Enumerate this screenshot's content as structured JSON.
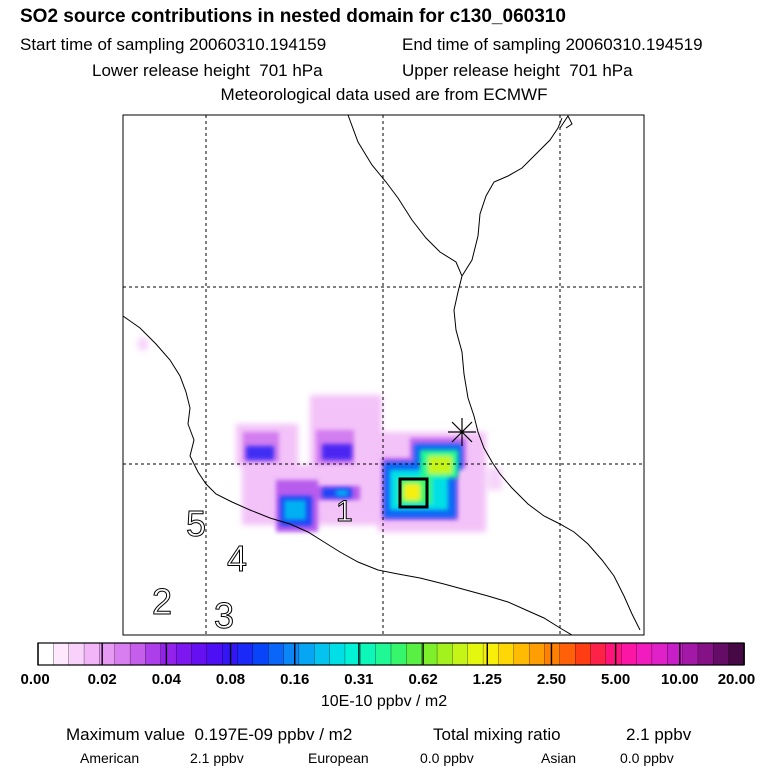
{
  "header": {
    "title": "SO2 source contributions in nested domain for c130_060310",
    "start_time": "Start time of sampling 20060310.194159",
    "end_time": "End time of sampling 20060310.194519",
    "lower_release": "Lower release height  701 hPa",
    "upper_release": "Upper release height  701 hPa",
    "met_data": "Meteorological data used are from ECMWF"
  },
  "chart_data": {
    "type": "heatmap",
    "title": "SO2 source contributions in nested domain for c130_060310",
    "colorbar": {
      "unit_label": "10E-10 ppbv / m2",
      "tick_labels": [
        "0.00",
        "0.02",
        "0.04",
        "0.08",
        "0.16",
        "0.31",
        "0.62",
        "1.25",
        "2.50",
        "5.00",
        "10.00",
        "20.00"
      ],
      "colors": [
        "#ffffff",
        "#fde8fd",
        "#f9d2fb",
        "#f2b6f8",
        "#e79af4",
        "#d97ef0",
        "#c65eec",
        "#ad3feb",
        "#9322ed",
        "#7d17f0",
        "#6610f2",
        "#4d10f4",
        "#3415f6",
        "#1a28f8",
        "#0845f8",
        "#0a66f8",
        "#0b86f7",
        "#07a6f4",
        "#04c4ef",
        "#00dfe6",
        "#02f2d6",
        "#0cf7b8",
        "#1ff894",
        "#36f76b",
        "#58f143",
        "#7ef02b",
        "#a3f21e",
        "#c4f516",
        "#e3f80e",
        "#f8f00a",
        "#ffd705",
        "#ffbb02",
        "#ff9e02",
        "#ff8003",
        "#ff6008",
        "#ff3d12",
        "#ff2248",
        "#ff147c",
        "#fc16a6",
        "#f11cbd",
        "#e021c7",
        "#c71ec7",
        "#a418a7",
        "#841286",
        "#650d66",
        "#470846"
      ]
    },
    "region_markers": [
      "1",
      "2",
      "3",
      "4",
      "5"
    ],
    "max_value": "Maximum value  0.197E-09 ppbv / m2",
    "total_mixing": "Total mixing ratio",
    "total_mixing_value": "2.1 ppbv",
    "regions": [
      {
        "name": "American",
        "value": "2.1 ppbv"
      },
      {
        "name": "European",
        "value": "0.0 ppbv"
      },
      {
        "name": "Asian",
        "value": "0.0 ppbv"
      }
    ]
  }
}
